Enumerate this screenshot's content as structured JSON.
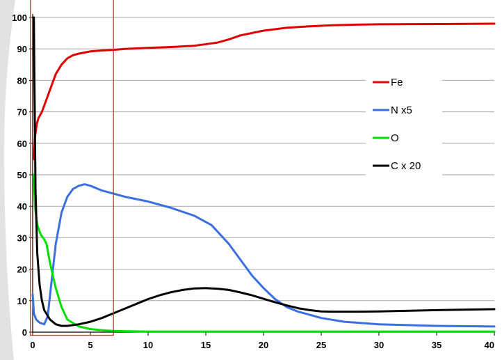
{
  "chart_data": {
    "type": "line",
    "title": "",
    "xlabel": "",
    "ylabel": "",
    "xlim": [
      0,
      40
    ],
    "ylim": [
      0,
      100
    ],
    "x_ticks": [
      0,
      5,
      10,
      15,
      20,
      25,
      30,
      35,
      40
    ],
    "y_ticks": [
      0,
      10,
      20,
      30,
      40,
      50,
      60,
      70,
      80,
      90,
      100
    ],
    "grid": "horizontal",
    "legend_position": "right",
    "highlight_region": {
      "x": [
        -0.2,
        7
      ],
      "y": [
        -1,
        106
      ],
      "color": "#e03030"
    },
    "series": [
      {
        "name": "Fe",
        "color": "#e00000",
        "x": [
          0.1,
          0.2,
          0.35,
          0.5,
          0.8,
          1.0,
          1.5,
          2.0,
          2.5,
          3.0,
          3.5,
          4.0,
          5.0,
          6.0,
          7.0,
          8.0,
          10.0,
          12.0,
          14.0,
          16.0,
          17.0,
          18.0,
          20.0,
          22.0,
          24.0,
          26.0,
          28.0,
          30.0,
          35.0,
          40.0
        ],
        "y": [
          55,
          62,
          66,
          68,
          70,
          72,
          77,
          82,
          85,
          87,
          88,
          88.5,
          89.2,
          89.5,
          89.7,
          90.0,
          90.3,
          90.6,
          91.0,
          92.0,
          93.0,
          94.3,
          95.8,
          96.7,
          97.2,
          97.5,
          97.7,
          97.8,
          97.9,
          98.0
        ]
      },
      {
        "name": "N x5",
        "color": "#3b6fe0",
        "x": [
          0.0,
          0.1,
          0.3,
          0.6,
          1.0,
          1.3,
          1.6,
          2.0,
          2.5,
          3.0,
          3.5,
          4.0,
          4.5,
          5.0,
          6.0,
          7.0,
          8.0,
          10.0,
          12.0,
          14.0,
          15.5,
          17.0,
          18.0,
          19.0,
          20.0,
          21.0,
          22.0,
          23.0,
          24.0,
          25.0,
          27.0,
          30.0,
          35.0,
          40.0
        ],
        "y": [
          12,
          6,
          4,
          3,
          2.5,
          5,
          15,
          28,
          38,
          43,
          45.5,
          46.5,
          47,
          46.5,
          45,
          44,
          43,
          41.5,
          39.5,
          37,
          34,
          28,
          23,
          18,
          14,
          10.5,
          8,
          6.5,
          5.5,
          4.5,
          3.3,
          2.5,
          2.0,
          1.8
        ]
      },
      {
        "name": "O",
        "color": "#00e000",
        "x": [
          0.1,
          0.2,
          0.4,
          0.7,
          1.0,
          1.2,
          1.5,
          2.0,
          2.5,
          3.0,
          4.0,
          5.0,
          6.0,
          7.0,
          8.0,
          10.0,
          15.0,
          20.0,
          25.0,
          30.0,
          35.0,
          40.0
        ],
        "y": [
          50,
          40,
          34,
          31,
          29.5,
          28,
          22,
          14,
          8,
          4,
          1.8,
          1.0,
          0.6,
          0.4,
          0.3,
          0.2,
          0.2,
          0.2,
          0.2,
          0.2,
          0.2,
          0.2
        ]
      },
      {
        "name": "C x 20",
        "color": "#000000",
        "x": [
          0.1,
          0.15,
          0.25,
          0.4,
          0.6,
          0.8,
          1.0,
          1.5,
          2.0,
          2.5,
          3.0,
          4.0,
          5.0,
          6.0,
          7.0,
          8.0,
          9.0,
          10.0,
          11.0,
          12.0,
          13.0,
          14.0,
          15.0,
          16.0,
          17.0,
          18.0,
          19.0,
          20.0,
          21.0,
          22.0,
          23.0,
          24.0,
          25.0,
          26.0,
          28.0,
          30.0,
          35.0,
          40.0
        ],
        "y": [
          100,
          80,
          45,
          25,
          15,
          10,
          7,
          4,
          2.5,
          2,
          2,
          2.5,
          3.3,
          4.5,
          6,
          7.5,
          9,
          10.5,
          11.7,
          12.7,
          13.4,
          13.9,
          14.0,
          13.8,
          13.4,
          12.6,
          11.7,
          10.6,
          9.5,
          8.5,
          7.6,
          7.0,
          6.6,
          6.5,
          6.5,
          6.6,
          7.0,
          7.3
        ]
      }
    ]
  }
}
